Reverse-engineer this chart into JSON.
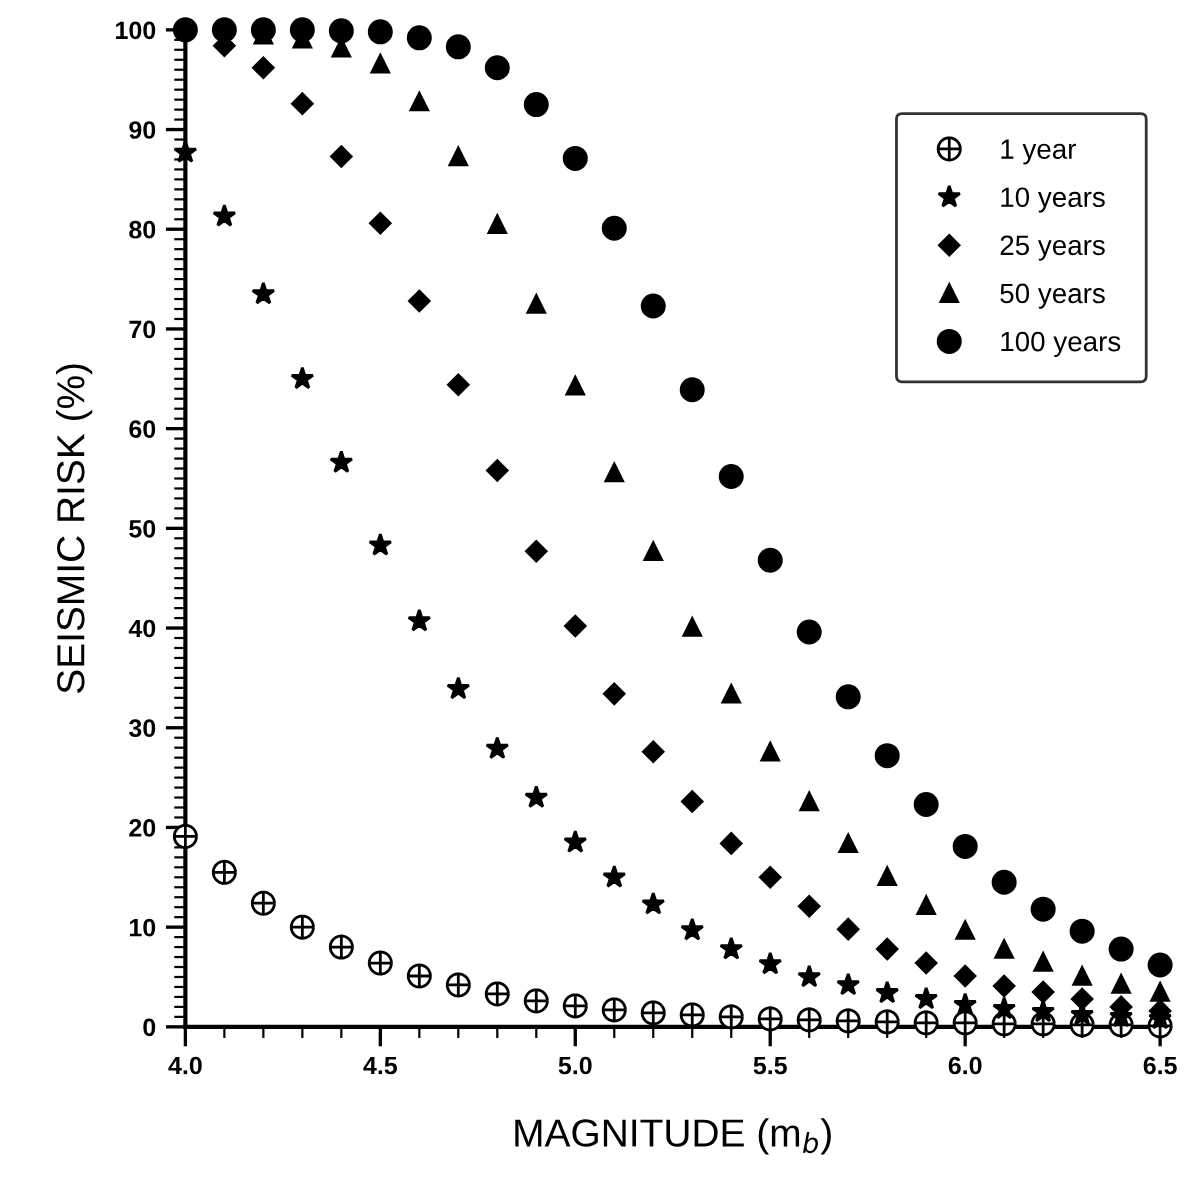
{
  "chart_data": {
    "type": "scatter",
    "xlabel": "MAGNITUDE (m$_{b}$)",
    "ylabel": "SEISMIC RISK (%)",
    "x": [
      4.0,
      4.1,
      4.2,
      4.3,
      4.4,
      4.5,
      4.6,
      4.7,
      4.8,
      4.9,
      5.0,
      5.1,
      5.2,
      5.3,
      5.4,
      5.5,
      5.6,
      5.7,
      5.8,
      5.9,
      6.0,
      6.1,
      6.2,
      6.3,
      6.4,
      6.5
    ],
    "series": [
      {
        "name": "1 year",
        "color": "#000000",
        "marker": "cross",
        "values": [
          19.1,
          15.5,
          12.4,
          10.0,
          8.0,
          6.4,
          5.1,
          4.2,
          3.3,
          2.6,
          2.1,
          1.7,
          1.4,
          1.2,
          1.0,
          0.8,
          0.7,
          0.6,
          0.5,
          0.4,
          0.4,
          0.3,
          0.3,
          0.2,
          0.2,
          0.1
        ]
      },
      {
        "name": "10 years",
        "color": "#000000",
        "marker": "star",
        "values": [
          87.7,
          81.3,
          73.5,
          65.0,
          56.6,
          48.3,
          40.7,
          33.9,
          27.9,
          23.0,
          18.5,
          15.0,
          12.3,
          9.7,
          7.8,
          6.3,
          5.0,
          4.2,
          3.4,
          2.8,
          2.2,
          1.8,
          1.5,
          1.2,
          1.0,
          0.8
        ]
      },
      {
        "name": "25 years",
        "color": "#000000",
        "marker": "diamond",
        "values": [
          null,
          98.4,
          96.2,
          92.6,
          87.3,
          80.6,
          72.8,
          64.4,
          55.8,
          47.7,
          40.2,
          33.4,
          27.6,
          22.6,
          18.4,
          15.0,
          12.1,
          9.8,
          7.8,
          6.4,
          5.1,
          4.1,
          3.5,
          2.8,
          2.0,
          1.6
        ]
      },
      {
        "name": "50 years",
        "color": "#000000",
        "marker": "triangle",
        "values": [
          null,
          null,
          99.5,
          99.1,
          98.2,
          96.6,
          92.8,
          87.3,
          80.5,
          72.5,
          64.3,
          55.6,
          47.7,
          40.1,
          33.4,
          27.6,
          22.6,
          18.4,
          15.1,
          12.2,
          9.7,
          7.8,
          6.5,
          5.1,
          4.3,
          3.5
        ]
      },
      {
        "name": "100 years",
        "color": "#000000",
        "marker": "circle",
        "values": [
          100,
          100,
          100,
          100,
          99.9,
          99.8,
          99.2,
          98.3,
          96.2,
          92.5,
          87.1,
          80.1,
          72.3,
          63.9,
          55.2,
          46.8,
          39.6,
          33.1,
          27.2,
          22.3,
          18.1,
          14.5,
          11.8,
          9.6,
          7.8,
          6.2
        ]
      }
    ],
    "xlim": [
      4.0,
      6.5
    ],
    "xticks": [
      {
        "value": 4.0,
        "label": "4.0"
      },
      {
        "value": 4.5,
        "label": "4.5"
      },
      {
        "value": 5.0,
        "label": "5.0"
      },
      {
        "value": 5.5,
        "label": "5.5"
      },
      {
        "value": 6.0,
        "label": "6.0"
      },
      {
        "value": 6.5,
        "label": "6.5"
      }
    ],
    "ylim": [
      0,
      100
    ],
    "yticks": [
      0,
      10,
      20,
      30,
      40,
      50,
      60,
      70,
      80,
      90,
      100
    ],
    "grid": false,
    "legend": "top right"
  }
}
